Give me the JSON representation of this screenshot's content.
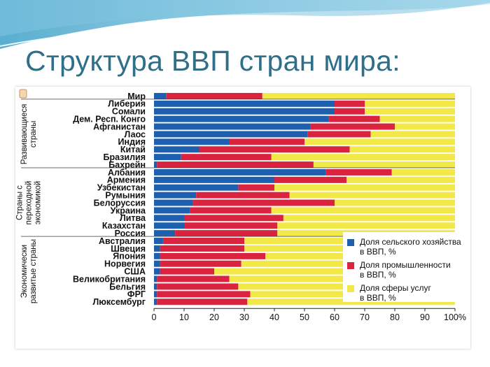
{
  "slide": {
    "title": "Структура ВВП стран мира:"
  },
  "chart_data": {
    "type": "bar",
    "orientation": "horizontal",
    "stacked": true,
    "xlim": [
      0,
      100
    ],
    "xticks": [
      "0",
      "10",
      "20",
      "30",
      "40",
      "50",
      "60",
      "70",
      "80",
      "90",
      "100%"
    ],
    "colors": {
      "agriculture": "#1f5fb0",
      "industry": "#d9233f",
      "services": "#f2e948"
    },
    "series": [
      {
        "name": "Доля сельского хозяйства в ВВП, %",
        "color_key": "agriculture"
      },
      {
        "name": "Доля промышлен­ности в ВВП, %",
        "color_key": "industry"
      },
      {
        "name": "Доля сферы услуг в ВВП, %",
        "color_key": "services"
      }
    ],
    "groups": [
      {
        "label_lines": [
          "Развивающиеся",
          "страны"
        ],
        "from": 1,
        "to": 9
      },
      {
        "label_lines": [
          "Страны с",
          "переходной",
          "экономикой"
        ],
        "from": 10,
        "to": 18
      },
      {
        "label_lines": [
          "Экономически",
          "развитые страны"
        ],
        "from": 19,
        "to": 27
      }
    ],
    "rows": [
      {
        "label": "Мир",
        "agriculture": 4,
        "industry": 32
      },
      {
        "label": "Либерия",
        "agriculture": 60,
        "industry": 10
      },
      {
        "label": "Сомали",
        "agriculture": 60,
        "industry": 10
      },
      {
        "label": "Дем. Респ. Конго",
        "agriculture": 58,
        "industry": 17
      },
      {
        "label": "Афганистан",
        "agriculture": 52,
        "industry": 28
      },
      {
        "label": "Лаос",
        "agriculture": 51,
        "industry": 21
      },
      {
        "label": "Индия",
        "agriculture": 25,
        "industry": 25
      },
      {
        "label": "Китай",
        "agriculture": 15,
        "industry": 50
      },
      {
        "label": "Бразилия",
        "agriculture": 9,
        "industry": 30
      },
      {
        "label": "Бахрейн",
        "agriculture": 1,
        "industry": 52
      },
      {
        "label": "Албания",
        "agriculture": 57,
        "industry": 22
      },
      {
        "label": "Армения",
        "agriculture": 40,
        "industry": 24
      },
      {
        "label": "Узбекистан",
        "agriculture": 28,
        "industry": 12
      },
      {
        "label": "Румыния",
        "agriculture": 14,
        "industry": 31
      },
      {
        "label": "Белоруссия",
        "agriculture": 13,
        "industry": 47
      },
      {
        "label": "Украина",
        "agriculture": 12,
        "industry": 27
      },
      {
        "label": "Литва",
        "agriculture": 10,
        "industry": 33
      },
      {
        "label": "Казахстан",
        "agriculture": 10,
        "industry": 31
      },
      {
        "label": "Россия",
        "agriculture": 7,
        "industry": 34
      },
      {
        "label": "Австралия",
        "agriculture": 3,
        "industry": 27
      },
      {
        "label": "Швеция",
        "agriculture": 2,
        "industry": 28
      },
      {
        "label": "Япония",
        "agriculture": 2,
        "industry": 35
      },
      {
        "label": "Норвегия",
        "agriculture": 2,
        "industry": 27
      },
      {
        "label": "США",
        "agriculture": 2,
        "industry": 18
      },
      {
        "label": "Великобритания",
        "agriculture": 1,
        "industry": 24
      },
      {
        "label": "Бельгия",
        "agriculture": 1,
        "industry": 27
      },
      {
        "label": "ФРГ",
        "agriculture": 1,
        "industry": 31
      },
      {
        "label": "Люксембург",
        "agriculture": 1,
        "industry": 30
      }
    ]
  }
}
